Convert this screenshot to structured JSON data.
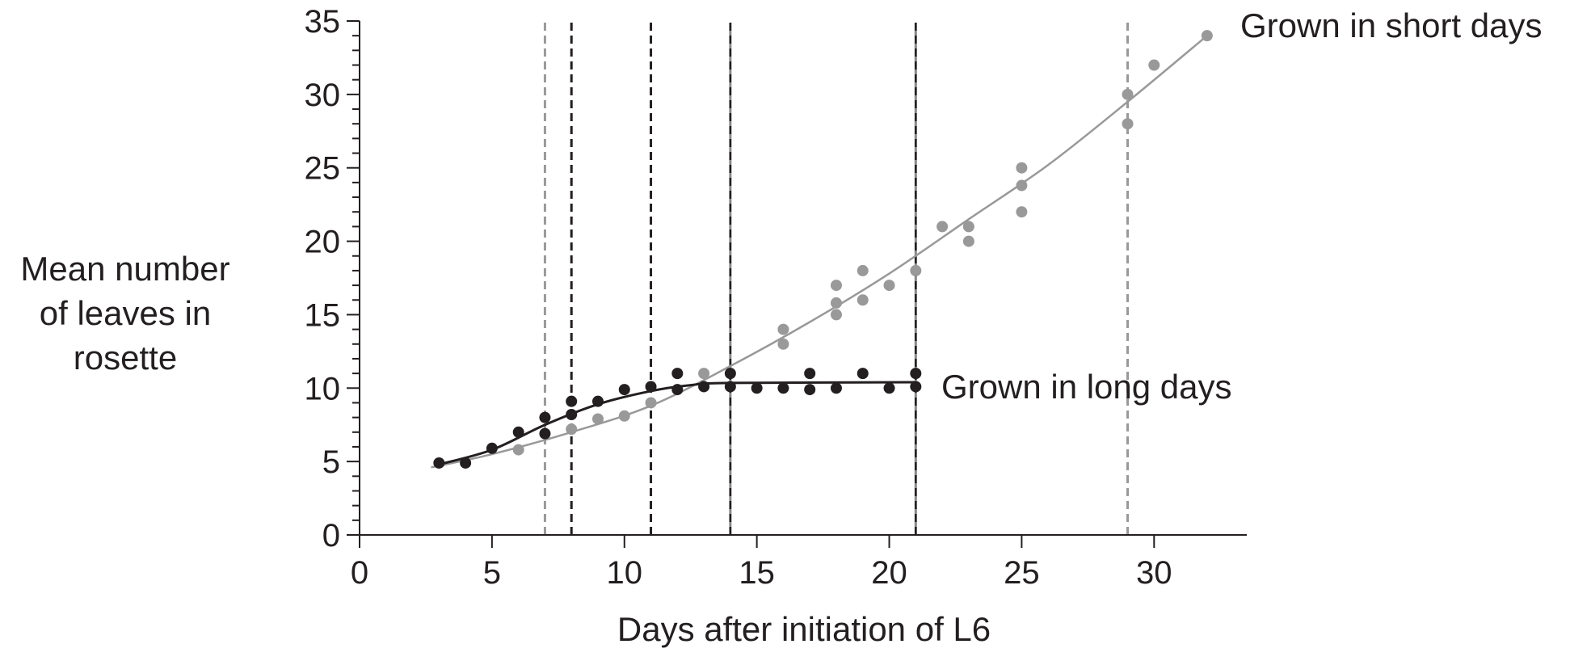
{
  "chart_data": {
    "type": "scatter",
    "xlabel": "Days after initiation of L6",
    "ylabel_lines": [
      "Mean number",
      "of leaves in",
      "rosette"
    ],
    "xlim": [
      0,
      33.5
    ],
    "ylim": [
      0,
      35
    ],
    "xticks": [
      0,
      5,
      10,
      15,
      20,
      25,
      30
    ],
    "yticks": [
      0,
      5,
      10,
      15,
      20,
      25,
      30,
      35
    ],
    "grid": false,
    "series": [
      {
        "name": "Grown in short days",
        "color": "#999999",
        "points": [
          [
            6,
            5.8
          ],
          [
            8,
            7.2
          ],
          [
            9,
            7.9
          ],
          [
            10,
            8.1
          ],
          [
            11,
            9.0
          ],
          [
            13,
            11.0
          ],
          [
            16,
            14.0
          ],
          [
            16,
            13.0
          ],
          [
            18,
            17.0
          ],
          [
            18,
            15.8
          ],
          [
            18,
            15.0
          ],
          [
            19,
            18.0
          ],
          [
            19,
            16.0
          ],
          [
            20,
            17.0
          ],
          [
            21,
            18.0
          ],
          [
            22,
            21.0
          ],
          [
            23,
            21.0
          ],
          [
            23,
            20.0
          ],
          [
            25,
            25.0
          ],
          [
            25,
            23.8
          ],
          [
            25,
            22.0
          ],
          [
            29,
            30.0
          ],
          [
            29,
            28.0
          ],
          [
            30,
            32.0
          ],
          [
            32,
            34.0
          ]
        ],
        "curve": [
          [
            2.7,
            4.6
          ],
          [
            5,
            5.5
          ],
          [
            8,
            7.0
          ],
          [
            11,
            8.8
          ],
          [
            14,
            11.5
          ],
          [
            17,
            14.5
          ],
          [
            20,
            17.8
          ],
          [
            23,
            21.5
          ],
          [
            26,
            25.2
          ],
          [
            29,
            29.5
          ],
          [
            32,
            34.0
          ]
        ]
      },
      {
        "name": "Grown in long days",
        "color": "#231f20",
        "points": [
          [
            3,
            4.9
          ],
          [
            4,
            4.9
          ],
          [
            5,
            5.9
          ],
          [
            6,
            7.0
          ],
          [
            7,
            8.0
          ],
          [
            7,
            6.9
          ],
          [
            8,
            9.1
          ],
          [
            8,
            8.2
          ],
          [
            9,
            9.1
          ],
          [
            10,
            9.9
          ],
          [
            11,
            10.1
          ],
          [
            12,
            11.0
          ],
          [
            12,
            9.9
          ],
          [
            13,
            10.1
          ],
          [
            14,
            11.0
          ],
          [
            14,
            10.1
          ],
          [
            15,
            10.0
          ],
          [
            16,
            10.0
          ],
          [
            17,
            11.0
          ],
          [
            17,
            9.9
          ],
          [
            18,
            10.0
          ],
          [
            19,
            11.0
          ],
          [
            20,
            10.0
          ],
          [
            21,
            11.0
          ],
          [
            21,
            10.1
          ]
        ],
        "curve": [
          [
            3,
            4.8
          ],
          [
            5,
            5.8
          ],
          [
            7,
            7.5
          ],
          [
            9,
            8.9
          ],
          [
            11,
            9.8
          ],
          [
            12.5,
            10.2
          ],
          [
            14,
            10.35
          ],
          [
            21,
            10.4
          ]
        ]
      }
    ],
    "vertical_lines": [
      {
        "x": 7,
        "style": "dashed",
        "color": "#999999"
      },
      {
        "x": 8,
        "style": "dashed",
        "color": "#231f20"
      },
      {
        "x": 11,
        "style": "dashed",
        "color": "#231f20"
      },
      {
        "x": 14,
        "style": "dashed-over-solid",
        "color": "#231f20"
      },
      {
        "x": 21,
        "style": "dashed-over-solid",
        "color": "#231f20"
      },
      {
        "x": 29,
        "style": "dashed",
        "color": "#999999"
      }
    ]
  }
}
